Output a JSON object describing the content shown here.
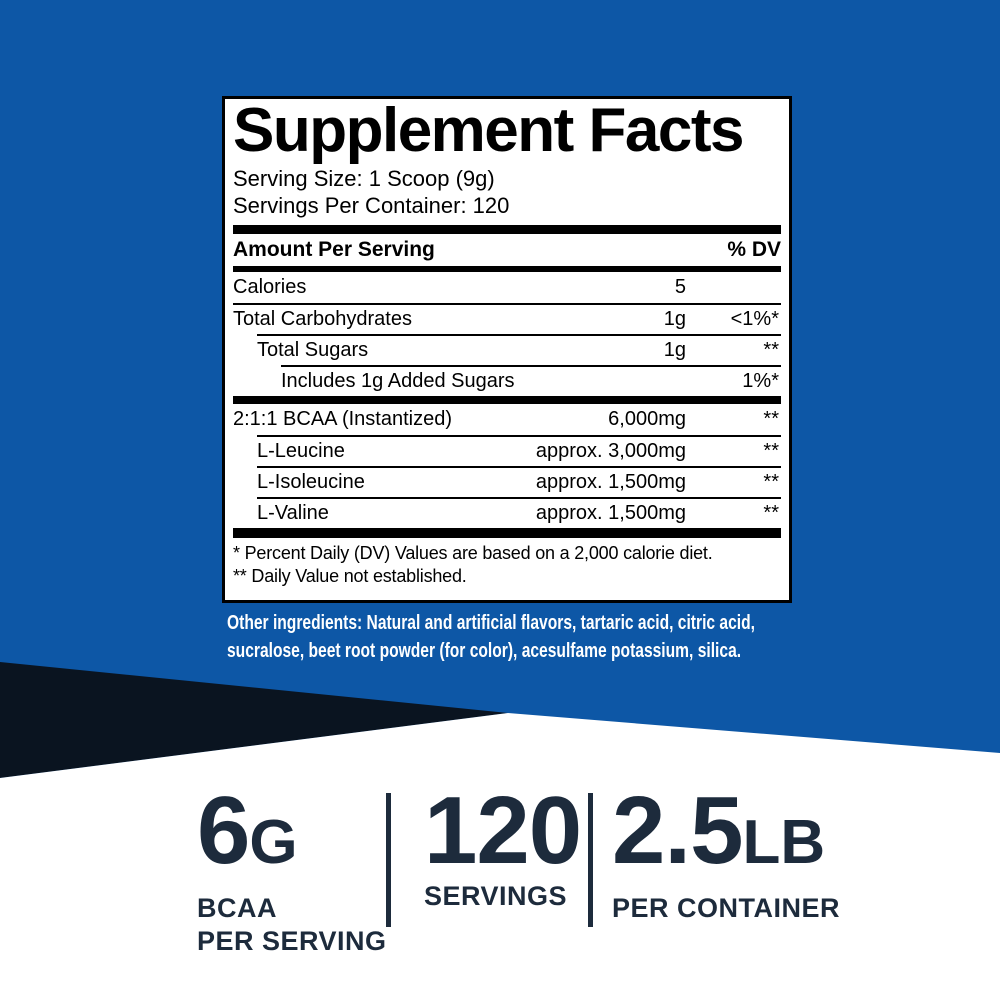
{
  "colors": {
    "background_blue": "#0d57a6",
    "wedge_navy": "#0a1420",
    "panel_background": "#ffffff",
    "panel_border": "#000000",
    "stat_navy": "#1d2b3c",
    "other_ingredients_text": "#ffffff"
  },
  "panel": {
    "title": "Supplement Facts",
    "serving_size": "Serving Size: 1 Scoop (9g)",
    "servings_per_container": "Servings Per Container: 120",
    "header": {
      "amount": "Amount Per Serving",
      "dv": "% DV"
    },
    "rows": [
      {
        "name": "Calories",
        "amount": "5",
        "dv": ""
      },
      {
        "name": "Total Carbohydrates",
        "amount": "1g",
        "dv": "<1%*"
      },
      {
        "name": "Total Sugars",
        "amount": "1g",
        "dv": "**"
      },
      {
        "name": "Includes 1g Added Sugars",
        "amount": "",
        "dv": "1%*"
      },
      {
        "name": "2:1:1 BCAA (Instantized)",
        "amount": "6,000mg",
        "dv": "**"
      },
      {
        "name": "L-Leucine",
        "amount": "approx. 3,000mg",
        "dv": "**"
      },
      {
        "name": "L-Isoleucine",
        "amount": "approx. 1,500mg",
        "dv": "**"
      },
      {
        "name": "L-Valine",
        "amount": "approx. 1,500mg",
        "dv": "**"
      }
    ],
    "footnotes": [
      "* Percent Daily (DV) Values are based on a 2,000 calorie diet.",
      "** Daily Value not established."
    ]
  },
  "other_ingredients": {
    "lines": [
      "Other ingredients: Natural and artificial flavors, tartaric acid, citric acid,",
      "sucralose, beet root powder (for color), acesulfame potassium, silica."
    ]
  },
  "stats": [
    {
      "value": "6",
      "unit": "G",
      "labels": [
        "BCAA",
        "PER SERVING"
      ]
    },
    {
      "value": "120",
      "unit": "",
      "labels": [
        "SERVINGS"
      ]
    },
    {
      "value": "2.5",
      "unit": "LB",
      "labels": [
        "PER CONTAINER"
      ]
    }
  ]
}
